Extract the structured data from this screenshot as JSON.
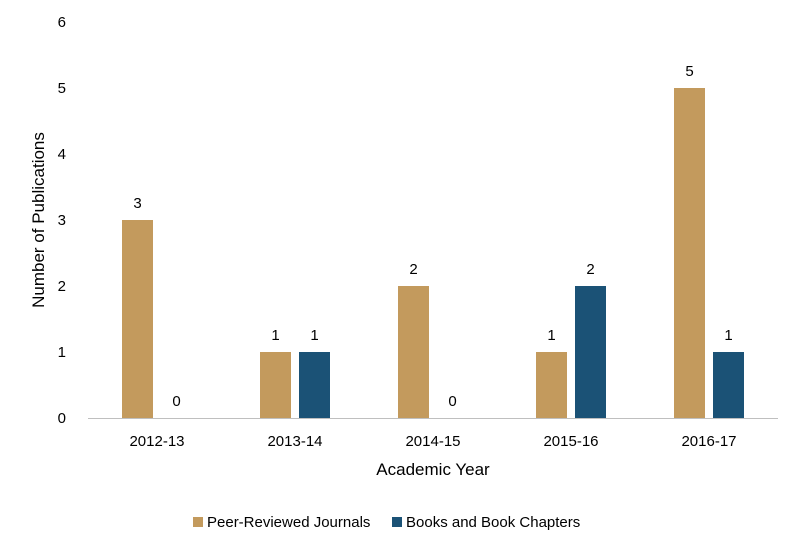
{
  "chart_data": {
    "type": "bar",
    "categories": [
      "2012-13",
      "2013-14",
      "2014-15",
      "2015-16",
      "2016-17"
    ],
    "series": [
      {
        "name": "Peer-Reviewed Journals",
        "values": [
          3,
          1,
          2,
          1,
          5
        ],
        "color": "#C39A5D"
      },
      {
        "name": "Books and Book Chapters",
        "values": [
          0,
          1,
          0,
          2,
          1
        ],
        "color": "#1B5276"
      }
    ],
    "title": "",
    "xlabel": "Academic Year",
    "ylabel": "Number of Publications",
    "ylim": [
      0,
      6
    ],
    "yticks": [
      0,
      1,
      2,
      3,
      4,
      5,
      6
    ],
    "grid": false,
    "legend_position": "bottom",
    "axis_color": "#BFBFBF"
  }
}
